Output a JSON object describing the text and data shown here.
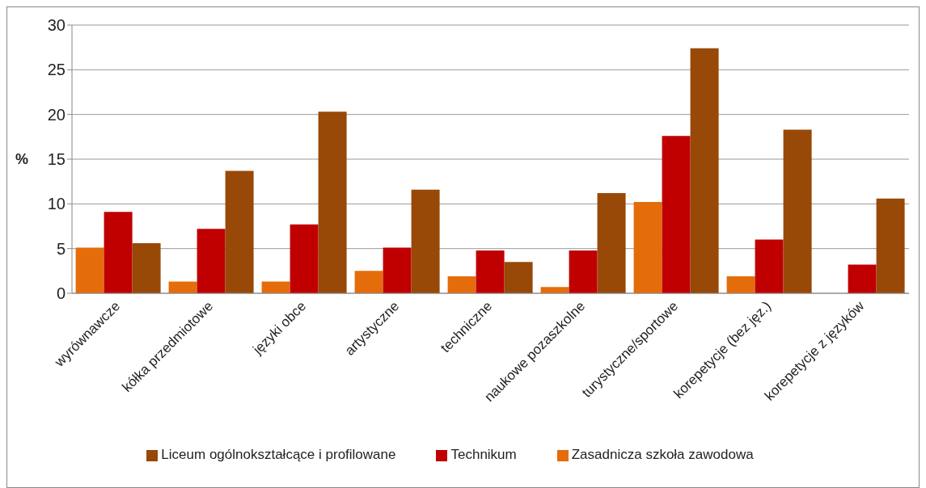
{
  "chart_data": {
    "type": "bar",
    "ylabel": "%",
    "categories": [
      "wyrównawcze",
      "kółka przedmiotowe",
      "języki obce",
      "artystyczne",
      "techniczne",
      "naukowe pozaszkolne",
      "turystyczne/sportowe",
      "korepetycje (bez jęz.)",
      "korepetycje z języków"
    ],
    "series": [
      {
        "name": "Zasadnicza szkoła zawodowa",
        "color": "#e46c0a",
        "values": [
          5.1,
          1.3,
          1.3,
          2.5,
          1.9,
          0.7,
          10.2,
          1.9,
          0
        ]
      },
      {
        "name": "Technikum",
        "color": "#c00000",
        "values": [
          9.1,
          7.2,
          7.7,
          5.1,
          4.8,
          4.8,
          17.6,
          6.0,
          3.2
        ]
      },
      {
        "name": "Liceum ogólnokształcące i profilowane",
        "color": "#984807",
        "values": [
          5.6,
          13.7,
          20.3,
          11.6,
          3.5,
          11.2,
          27.4,
          18.3,
          10.6
        ]
      }
    ],
    "ylim": [
      0,
      30
    ],
    "yticks": [
      0,
      5,
      10,
      15,
      20,
      25,
      30
    ],
    "grid": "y",
    "legend": "bottom"
  }
}
